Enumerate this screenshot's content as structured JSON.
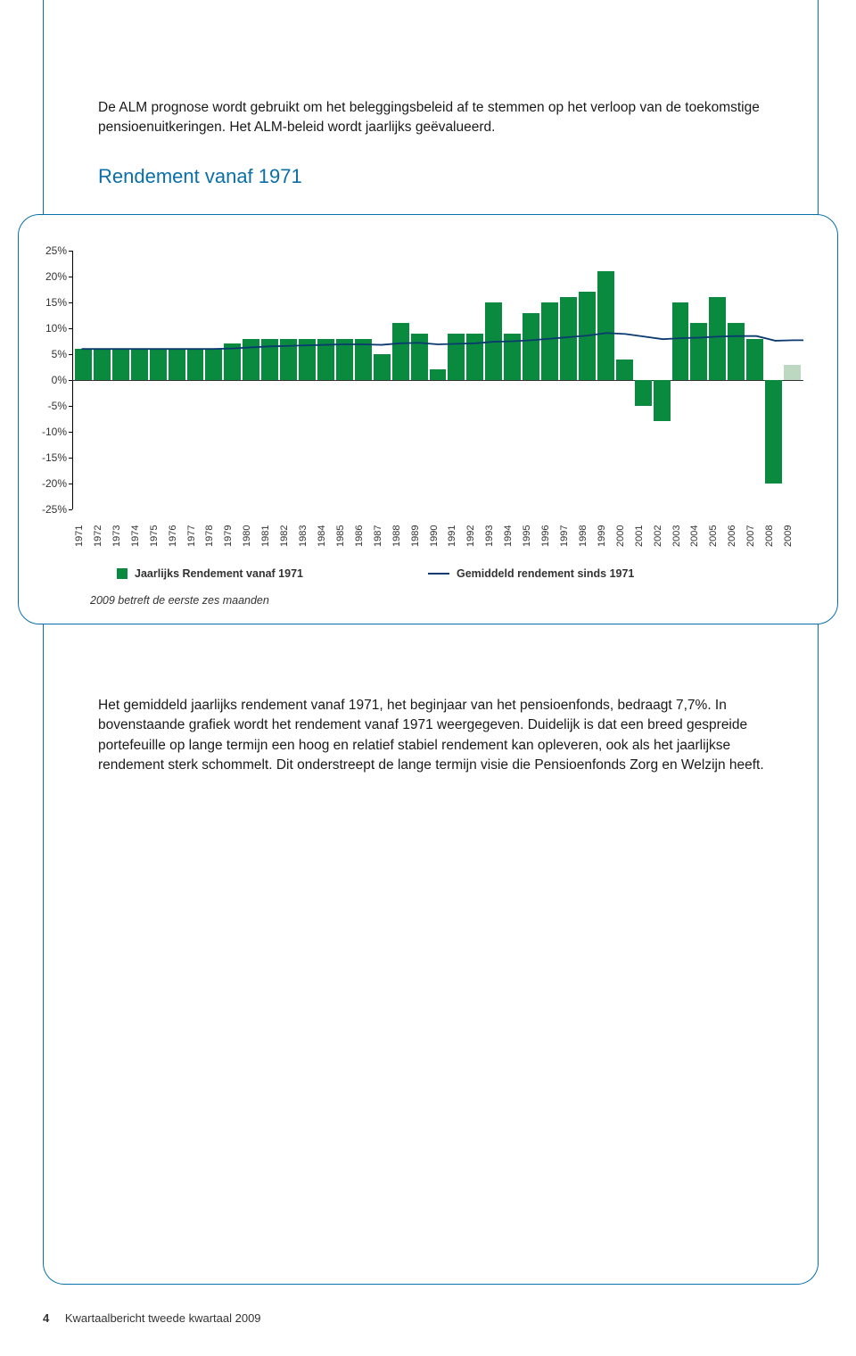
{
  "intro": "De ALM prognose wordt gebruikt om het beleggingsbeleid af te stemmen op het verloop van de toekomstige pensioenuitkeringen. Het ALM-beleid wordt jaarlijks geëvalueerd.",
  "chart": {
    "title": "Rendement vanaf 1971",
    "type": "bar",
    "ylim": [
      -25,
      25
    ],
    "ytick_step": 5,
    "yticks": [
      "25%",
      "20%",
      "15%",
      "10%",
      "5%",
      "0%",
      "-5%",
      "-10%",
      "-15%",
      "-20%",
      "-25%"
    ],
    "categories": [
      "1971",
      "1972",
      "1973",
      "1974",
      "1975",
      "1976",
      "1977",
      "1978",
      "1979",
      "1980",
      "1981",
      "1982",
      "1983",
      "1984",
      "1985",
      "1986",
      "1987",
      "1988",
      "1989",
      "1990",
      "1991",
      "1992",
      "1993",
      "1994",
      "1995",
      "1996",
      "1997",
      "1998",
      "1999",
      "2000",
      "2001",
      "2002",
      "2003",
      "2004",
      "2005",
      "2006",
      "2007",
      "2008",
      "2009"
    ],
    "values": [
      6,
      6,
      6,
      6,
      6,
      6,
      6,
      6,
      7,
      8,
      8,
      8,
      8,
      8,
      8,
      8,
      5,
      11,
      9,
      2,
      9,
      9,
      15,
      9,
      13,
      15,
      16,
      17,
      21,
      4,
      -5,
      -8,
      15,
      11,
      16,
      11,
      8,
      -20,
      3
    ],
    "avg_values": [
      6.0,
      6.0,
      6.0,
      6.0,
      6.0,
      6.0,
      6.0,
      6.0,
      6.1,
      6.3,
      6.5,
      6.6,
      6.7,
      6.8,
      6.9,
      6.9,
      6.8,
      7.1,
      7.2,
      6.9,
      7.0,
      7.1,
      7.4,
      7.5,
      7.7,
      8.0,
      8.3,
      8.6,
      9.1,
      8.9,
      8.4,
      7.9,
      8.1,
      8.2,
      8.4,
      8.5,
      8.5,
      7.6,
      7.7
    ],
    "bar_color": "#0a8a3f",
    "bar_color_last": "#bcd8c1",
    "line_color": "#0a3a6f",
    "axis_color": "#000000",
    "background_color": "#ffffff",
    "legend_bar": "Jaarlijks Rendement vanaf 1971",
    "legend_line": "Gemiddeld rendement sinds 1971",
    "note": "2009 betreft de eerste zes maanden"
  },
  "body": "Het gemiddeld jaarlijks rendement vanaf 1971, het beginjaar van het pensioenfonds, bedraagt 7,7%. In bovenstaande grafiek wordt het rendement vanaf 1971 weergegeven. Duidelijk is dat een breed gespreide portefeuille op lange termijn een hoog en relatief stabiel rendement kan opleveren, ook als het jaarlijkse rendement sterk schommelt. Dit onderstreept de lange termijn visie die Pensioenfonds Zorg en Welzijn heeft.",
  "footer": {
    "page": "4",
    "text": "Kwartaalbericht tweede kwartaal 2009"
  }
}
